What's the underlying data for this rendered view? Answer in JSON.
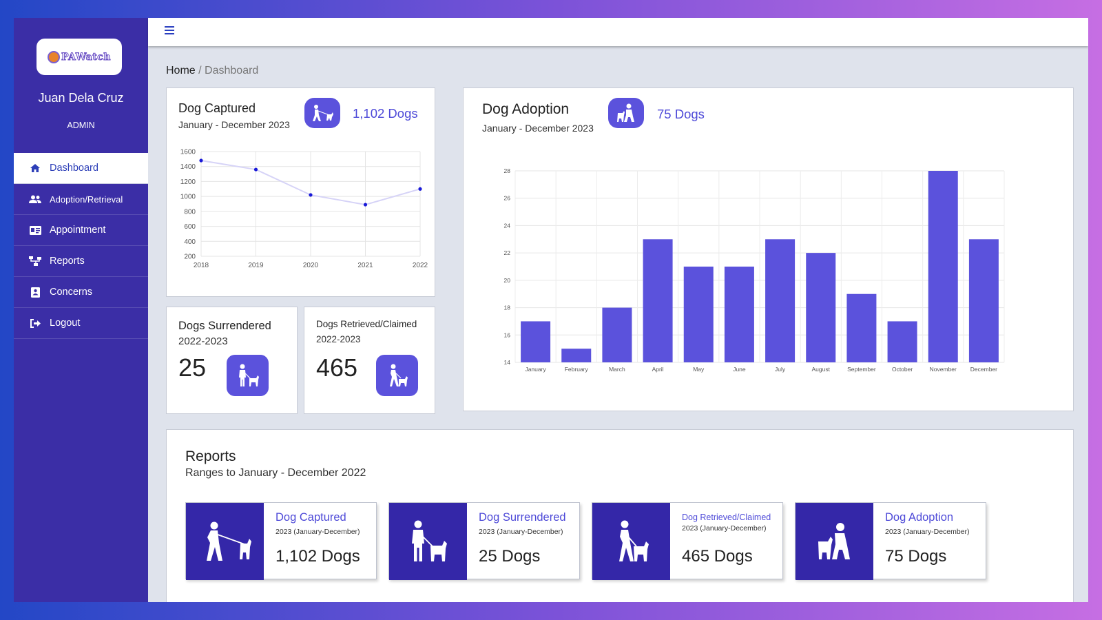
{
  "app": {
    "logo_text": "PAWatch"
  },
  "user": {
    "name": "Juan Dela Cruz",
    "role": "ADMIN"
  },
  "sidebar": {
    "items": [
      {
        "label": "Dashboard",
        "icon": "home-icon"
      },
      {
        "label": "Adoption/Retrieval",
        "icon": "users-icon"
      },
      {
        "label": "Appointment",
        "icon": "id-card-icon"
      },
      {
        "label": "Reports",
        "icon": "sitemap-icon"
      },
      {
        "label": "Concerns",
        "icon": "contact-book-icon"
      },
      {
        "label": "Logout",
        "icon": "sign-out-icon"
      }
    ]
  },
  "breadcrumb": {
    "home": "Home",
    "separator": "/",
    "current": "Dashboard"
  },
  "captured_card": {
    "title": "Dog Captured",
    "subtitle": "January - December 2023",
    "value": "1,102 Dogs"
  },
  "adoption_card": {
    "title": "Dog Adoption",
    "subtitle": "January - December 2023",
    "value": "75 Dogs"
  },
  "surrendered_card": {
    "title": "Dogs Surrendered",
    "subtitle": "2022-2023",
    "value": "25"
  },
  "retrieved_card": {
    "title": "Dogs Retrieved/Claimed",
    "subtitle": "2022-2023",
    "value": "465"
  },
  "reports": {
    "title": "Reports",
    "subtitle": "Ranges to January - December 2022",
    "tiles": [
      {
        "title": "Dog Captured",
        "sub": "2023 (January-December)",
        "value": "1,102 Dogs"
      },
      {
        "title": "Dog Surrendered",
        "sub": "2023 (January-December)",
        "value": "25 Dogs"
      },
      {
        "title": "Dog Retrieved/Claimed",
        "sub": "2023 (January-December)",
        "value": "465 Dogs"
      },
      {
        "title": "Dog Adoption",
        "sub": "2023 (January-December)",
        "value": "75 Dogs"
      }
    ]
  },
  "colors": {
    "accent": "#5b52dc",
    "sidebar": "#3b2ea6",
    "tile_bg": "#3427a8",
    "bar": "#5b52dc",
    "line": "#d6d3f7",
    "point": "#1a1ad8"
  },
  "chart_data": [
    {
      "type": "line",
      "x": [
        "2018",
        "2019",
        "2020",
        "2021",
        "2022"
      ],
      "values": [
        1480,
        1360,
        1020,
        890,
        1100
      ],
      "ylim": [
        200,
        1600
      ],
      "yticks": [
        200,
        400,
        600,
        800,
        1000,
        1200,
        1400,
        1600
      ],
      "grid": true,
      "legend": "none"
    },
    {
      "type": "bar",
      "categories": [
        "January",
        "February",
        "March",
        "April",
        "May",
        "June",
        "July",
        "August",
        "September",
        "October",
        "November",
        "December"
      ],
      "values": [
        17,
        15,
        18,
        23,
        21,
        21,
        23,
        22,
        19,
        17,
        28,
        23
      ],
      "ylim": [
        14,
        28
      ],
      "yticks": [
        14,
        16,
        18,
        20,
        22,
        24,
        26,
        28
      ],
      "grid": true,
      "legend": "none"
    }
  ]
}
